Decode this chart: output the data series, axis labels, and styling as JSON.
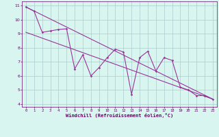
{
  "x": [
    0,
    1,
    2,
    3,
    4,
    5,
    6,
    7,
    8,
    9,
    10,
    11,
    12,
    13,
    14,
    15,
    16,
    17,
    18,
    19,
    20,
    21,
    22,
    23
  ],
  "y_data": [
    10.9,
    10.6,
    9.1,
    9.2,
    9.3,
    9.35,
    6.5,
    7.5,
    6.0,
    6.6,
    7.3,
    7.9,
    7.7,
    4.7,
    7.3,
    7.75,
    6.35,
    7.3,
    7.1,
    5.2,
    5.0,
    4.6,
    4.6,
    4.35
  ],
  "trend1_x": [
    0,
    23
  ],
  "trend1_y": [
    10.9,
    4.35
  ],
  "trend2_x": [
    0,
    23
  ],
  "trend2_y": [
    9.1,
    4.35
  ],
  "line_color": "#993399",
  "bg_color": "#d8f5f0",
  "grid_color": "#aacccc",
  "xlabel": "Windchill (Refroidissement éolien,°C)",
  "xlabel_color": "#660066",
  "tick_color": "#660066",
  "xlim": [
    -0.5,
    23.5
  ],
  "ylim": [
    3.8,
    11.3
  ],
  "yticks": [
    4,
    5,
    6,
    7,
    8,
    9,
    10,
    11
  ],
  "xticks": [
    0,
    1,
    2,
    3,
    4,
    5,
    6,
    7,
    8,
    9,
    10,
    11,
    12,
    13,
    14,
    15,
    16,
    17,
    18,
    19,
    20,
    21,
    22,
    23
  ]
}
